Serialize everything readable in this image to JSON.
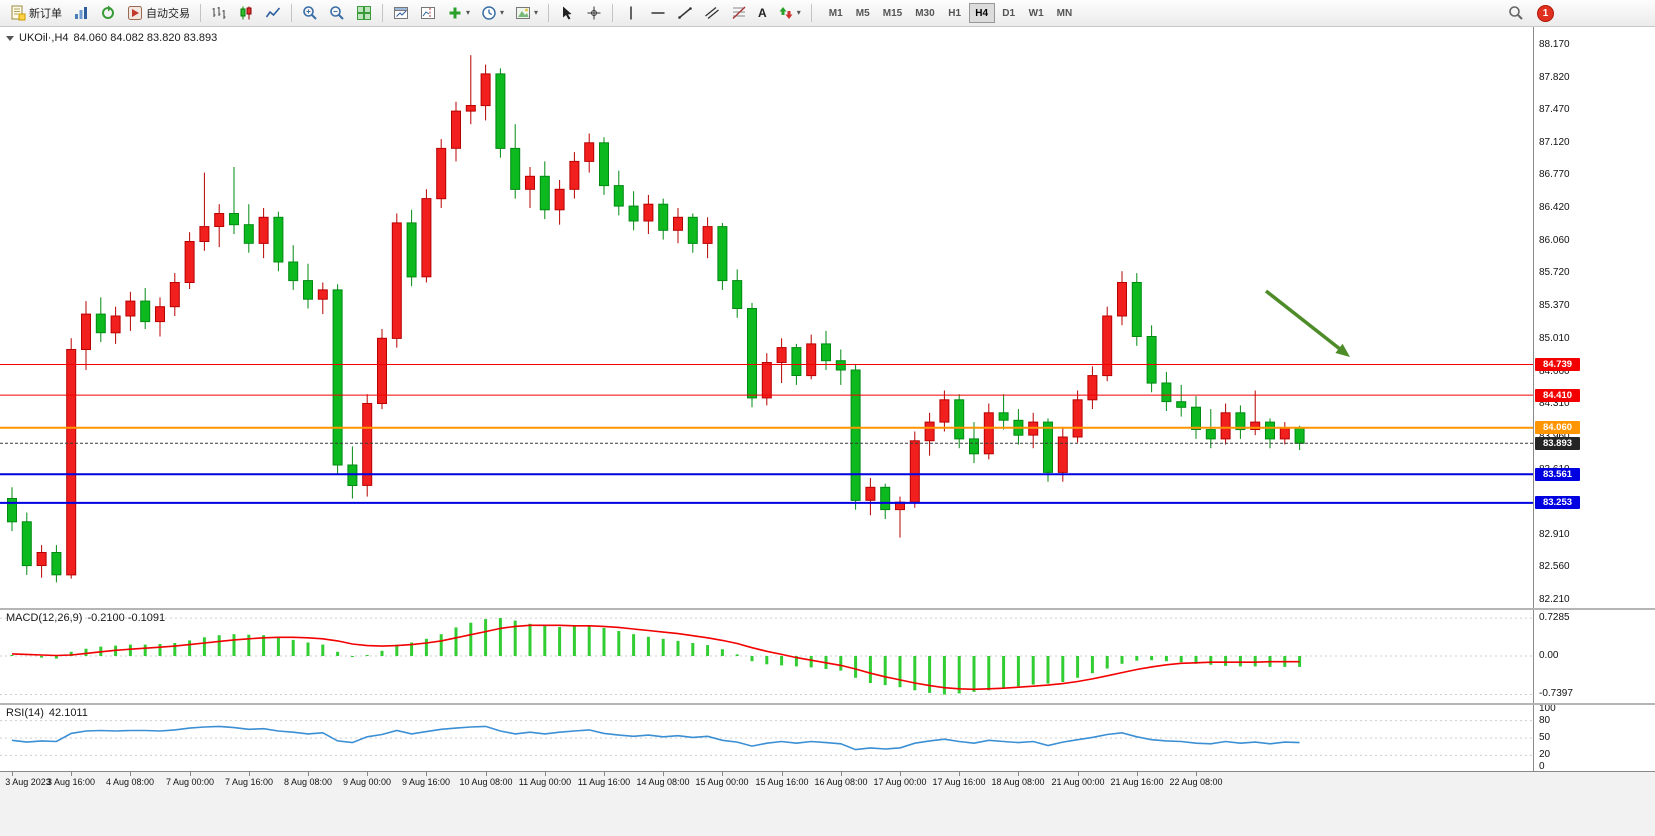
{
  "toolbar": {
    "new_order_label": "新订单",
    "autotrading_label": "自动交易",
    "badge_count": "1",
    "timeframes": [
      "M1",
      "M5",
      "M15",
      "M30",
      "H1",
      "H4",
      "D1",
      "W1",
      "MN"
    ],
    "active_timeframe": "H4",
    "glyphs": {
      "caret": "▾",
      "text_tool": "A",
      "fibo_tool": "f"
    }
  },
  "main_chart": {
    "symbol": "UKOil·,H4",
    "ohlc_text": "84.060 84.082 83.820 83.893",
    "price_axis": [
      "88.170",
      "87.820",
      "87.470",
      "87.120",
      "86.770",
      "86.420",
      "86.060",
      "85.720",
      "85.370",
      "85.010",
      "84.660",
      "84.310",
      "83.960",
      "83.610",
      "83.260",
      "82.910",
      "82.560",
      "82.210"
    ],
    "lines": [
      {
        "price": 84.739,
        "label": "84.739",
        "color": "#f20000",
        "width": 1,
        "dashed": false
      },
      {
        "price": 84.41,
        "label": "84.410",
        "color": "#f20000",
        "width": 1,
        "dashed": false
      },
      {
        "price": 84.06,
        "label": "84.060",
        "color": "#ff9500",
        "width": 2,
        "dashed": false
      },
      {
        "price": 83.893,
        "label": "83.893",
        "color": "#3a3a3a",
        "width": 1,
        "dashed": true,
        "tag_color": "#242424"
      },
      {
        "price": 83.561,
        "label": "83.561",
        "color": "#0000e0",
        "width": 2,
        "dashed": false
      },
      {
        "price": 83.253,
        "label": "83.253",
        "color": "#0000e0",
        "width": 2,
        "dashed": false
      }
    ],
    "annotation_arrow": {
      "from": [
        1266,
        264
      ],
      "to": [
        1350,
        330
      ],
      "color": "#4e8c2a"
    }
  },
  "macd": {
    "title": "MACD(12,26,9)",
    "values_text": "-0.2100 -0.1091",
    "axis": [
      "0.7285",
      "0.00",
      "-0.7397"
    ]
  },
  "rsi": {
    "title": "RSI(14)",
    "value": "42.1011",
    "axis": [
      "100",
      "80",
      "50",
      "20",
      "0"
    ]
  },
  "chart_data": {
    "type": "candlestick",
    "symbol": "UKOil",
    "timeframe": "H4",
    "price_range": [
      82.21,
      88.17
    ],
    "colors": {
      "bull": "#f21f1f",
      "bull_edge": "#b80000",
      "bear": "#0cb91f",
      "bear_edge": "#008a12",
      "macd_hist": "#32CD32",
      "macd_signal": "#f20000",
      "rsi_line": "#3b8fd4"
    },
    "candles": [
      [
        83.3,
        83.42,
        82.95,
        83.05
      ],
      [
        83.05,
        83.15,
        82.48,
        82.58
      ],
      [
        82.58,
        82.8,
        82.45,
        82.72
      ],
      [
        82.72,
        82.8,
        82.4,
        82.48
      ],
      [
        82.48,
        85.02,
        82.44,
        84.9
      ],
      [
        84.9,
        85.42,
        84.68,
        85.28
      ],
      [
        85.28,
        85.46,
        84.98,
        85.08
      ],
      [
        85.08,
        85.36,
        84.96,
        85.26
      ],
      [
        85.26,
        85.52,
        85.1,
        85.42
      ],
      [
        85.42,
        85.56,
        85.12,
        85.2
      ],
      [
        85.2,
        85.46,
        85.04,
        85.36
      ],
      [
        85.36,
        85.72,
        85.26,
        85.62
      ],
      [
        85.62,
        86.16,
        85.55,
        86.06
      ],
      [
        86.06,
        86.8,
        85.96,
        86.22
      ],
      [
        86.22,
        86.46,
        86.0,
        86.36
      ],
      [
        86.36,
        86.86,
        86.14,
        86.24
      ],
      [
        86.24,
        86.46,
        85.94,
        86.04
      ],
      [
        86.04,
        86.42,
        85.88,
        86.32
      ],
      [
        86.32,
        86.38,
        85.74,
        85.84
      ],
      [
        85.84,
        86.02,
        85.54,
        85.64
      ],
      [
        85.64,
        85.82,
        85.34,
        85.44
      ],
      [
        85.44,
        85.62,
        85.28,
        85.54
      ],
      [
        85.54,
        85.6,
        83.56,
        83.66
      ],
      [
        83.66,
        83.86,
        83.3,
        83.44
      ],
      [
        83.44,
        84.42,
        83.32,
        84.32
      ],
      [
        84.32,
        85.12,
        84.26,
        85.02
      ],
      [
        85.02,
        86.36,
        84.92,
        86.26
      ],
      [
        86.26,
        86.4,
        85.58,
        85.68
      ],
      [
        85.68,
        86.62,
        85.62,
        86.52
      ],
      [
        86.52,
        87.16,
        86.42,
        87.06
      ],
      [
        87.06,
        87.56,
        86.92,
        87.46
      ],
      [
        87.46,
        88.06,
        87.32,
        87.52
      ],
      [
        87.52,
        87.96,
        87.36,
        87.86
      ],
      [
        87.86,
        87.92,
        86.96,
        87.06
      ],
      [
        87.06,
        87.32,
        86.52,
        86.62
      ],
      [
        86.62,
        86.86,
        86.42,
        86.76
      ],
      [
        86.76,
        86.92,
        86.3,
        86.4
      ],
      [
        86.4,
        86.72,
        86.24,
        86.62
      ],
      [
        86.62,
        87.02,
        86.52,
        86.92
      ],
      [
        86.92,
        87.22,
        86.8,
        87.12
      ],
      [
        87.12,
        87.18,
        86.56,
        86.66
      ],
      [
        86.66,
        86.82,
        86.34,
        86.44
      ],
      [
        86.44,
        86.6,
        86.18,
        86.28
      ],
      [
        86.28,
        86.56,
        86.14,
        86.46
      ],
      [
        86.46,
        86.52,
        86.08,
        86.18
      ],
      [
        86.18,
        86.42,
        86.04,
        86.32
      ],
      [
        86.32,
        86.36,
        85.94,
        86.04
      ],
      [
        86.04,
        86.32,
        85.88,
        86.22
      ],
      [
        86.22,
        86.26,
        85.54,
        85.64
      ],
      [
        85.64,
        85.76,
        85.24,
        85.34
      ],
      [
        85.34,
        85.4,
        84.28,
        84.38
      ],
      [
        84.38,
        84.86,
        84.3,
        84.76
      ],
      [
        84.76,
        85.02,
        84.54,
        84.92
      ],
      [
        84.92,
        84.96,
        84.52,
        84.62
      ],
      [
        84.62,
        85.06,
        84.58,
        84.96
      ],
      [
        84.96,
        85.1,
        84.68,
        84.78
      ],
      [
        84.78,
        84.9,
        84.52,
        84.68
      ],
      [
        84.68,
        84.74,
        83.18,
        83.28
      ],
      [
        83.28,
        83.52,
        83.12,
        83.42
      ],
      [
        83.42,
        83.46,
        83.08,
        83.18
      ],
      [
        83.18,
        83.32,
        82.88,
        83.26
      ],
      [
        83.26,
        84.02,
        83.2,
        83.92
      ],
      [
        83.92,
        84.22,
        83.76,
        84.12
      ],
      [
        84.12,
        84.46,
        84.02,
        84.36
      ],
      [
        84.36,
        84.42,
        83.84,
        83.94
      ],
      [
        83.94,
        84.12,
        83.68,
        83.78
      ],
      [
        83.78,
        84.32,
        83.72,
        84.22
      ],
      [
        84.22,
        84.42,
        84.04,
        84.14
      ],
      [
        84.14,
        84.26,
        83.88,
        83.98
      ],
      [
        83.98,
        84.22,
        83.84,
        84.12
      ],
      [
        84.12,
        84.16,
        83.48,
        83.58
      ],
      [
        83.58,
        84.06,
        83.48,
        83.96
      ],
      [
        83.96,
        84.46,
        83.9,
        84.36
      ],
      [
        84.36,
        84.72,
        84.26,
        84.62
      ],
      [
        84.62,
        85.36,
        84.56,
        85.26
      ],
      [
        85.26,
        85.74,
        85.16,
        85.62
      ],
      [
        85.62,
        85.72,
        84.94,
        85.04
      ],
      [
        85.04,
        85.16,
        84.44,
        84.54
      ],
      [
        84.54,
        84.66,
        84.24,
        84.34
      ],
      [
        84.34,
        84.52,
        84.18,
        84.28
      ],
      [
        84.28,
        84.4,
        83.94,
        84.04
      ],
      [
        84.04,
        84.26,
        83.84,
        83.94
      ],
      [
        83.94,
        84.32,
        83.88,
        84.22
      ],
      [
        84.22,
        84.3,
        83.94,
        84.04
      ],
      [
        84.04,
        84.46,
        83.98,
        84.12
      ],
      [
        84.12,
        84.16,
        83.84,
        83.94
      ],
      [
        83.94,
        84.12,
        83.88,
        84.06
      ],
      [
        84.06,
        84.082,
        83.82,
        83.893
      ]
    ],
    "macd": {
      "range": [
        -0.7397,
        0.7285
      ],
      "histogram": [
        0.02,
        0.0,
        -0.03,
        -0.05,
        0.08,
        0.14,
        0.18,
        0.2,
        0.22,
        0.22,
        0.23,
        0.25,
        0.3,
        0.36,
        0.4,
        0.42,
        0.41,
        0.4,
        0.36,
        0.31,
        0.26,
        0.22,
        0.08,
        -0.02,
        0.02,
        0.1,
        0.22,
        0.26,
        0.33,
        0.42,
        0.55,
        0.64,
        0.71,
        0.73,
        0.68,
        0.62,
        0.58,
        0.56,
        0.57,
        0.58,
        0.54,
        0.48,
        0.42,
        0.37,
        0.33,
        0.29,
        0.25,
        0.21,
        0.13,
        0.03,
        -0.1,
        -0.16,
        -0.18,
        -0.2,
        -0.22,
        -0.25,
        -0.28,
        -0.42,
        -0.52,
        -0.56,
        -0.6,
        -0.66,
        -0.71,
        -0.74,
        -0.72,
        -0.69,
        -0.66,
        -0.62,
        -0.58,
        -0.55,
        -0.53,
        -0.5,
        -0.42,
        -0.33,
        -0.24,
        -0.15,
        -0.09,
        -0.08,
        -0.1,
        -0.12,
        -0.15,
        -0.17,
        -0.19,
        -0.2,
        -0.2,
        -0.21,
        -0.21,
        -0.21
      ],
      "signal": [
        0.04,
        0.03,
        0.02,
        0.01,
        0.02,
        0.05,
        0.08,
        0.11,
        0.13,
        0.15,
        0.17,
        0.19,
        0.22,
        0.25,
        0.28,
        0.31,
        0.33,
        0.35,
        0.36,
        0.36,
        0.35,
        0.33,
        0.29,
        0.23,
        0.2,
        0.19,
        0.2,
        0.22,
        0.25,
        0.29,
        0.35,
        0.41,
        0.47,
        0.53,
        0.57,
        0.59,
        0.59,
        0.59,
        0.58,
        0.58,
        0.57,
        0.55,
        0.52,
        0.49,
        0.46,
        0.43,
        0.39,
        0.35,
        0.3,
        0.24,
        0.16,
        0.09,
        0.03,
        -0.03,
        -0.08,
        -0.13,
        -0.18,
        -0.25,
        -0.33,
        -0.4,
        -0.46,
        -0.52,
        -0.57,
        -0.61,
        -0.63,
        -0.64,
        -0.63,
        -0.62,
        -0.6,
        -0.58,
        -0.56,
        -0.53,
        -0.49,
        -0.44,
        -0.38,
        -0.32,
        -0.26,
        -0.21,
        -0.17,
        -0.14,
        -0.13,
        -0.12,
        -0.12,
        -0.12,
        -0.12,
        -0.11,
        -0.11,
        -0.109
      ]
    },
    "rsi": {
      "range": [
        0,
        100
      ],
      "levels": [
        80,
        50,
        20
      ],
      "values": [
        46,
        43,
        45,
        44,
        58,
        62,
        63,
        62,
        63,
        63,
        62,
        64,
        67,
        69,
        70,
        68,
        65,
        66,
        62,
        60,
        57,
        59,
        45,
        42,
        52,
        56,
        63,
        57,
        61,
        65,
        67,
        69,
        70,
        62,
        57,
        60,
        57,
        60,
        62,
        64,
        58,
        55,
        53,
        55,
        52,
        54,
        51,
        53,
        46,
        43,
        36,
        41,
        44,
        41,
        44,
        42,
        40,
        30,
        33,
        31,
        33,
        41,
        45,
        48,
        44,
        41,
        46,
        44,
        42,
        44,
        37,
        43,
        47,
        51,
        56,
        59,
        52,
        47,
        45,
        44,
        41,
        40,
        44,
        41,
        43,
        40,
        43,
        42.1
      ]
    },
    "time_labels_every": 4,
    "time_labels": [
      "3 Aug 2023",
      "3 Aug 16:00",
      "4 Aug 08:00",
      "7 Aug 00:00",
      "7 Aug 16:00",
      "8 Aug 08:00",
      "9 Aug 00:00",
      "9 Aug 16:00",
      "10 Aug 08:00",
      "11 Aug 00:00",
      "11 Aug 16:00",
      "14 Aug 08:00",
      "15 Aug 00:00",
      "15 Aug 16:00",
      "16 Aug 08:00",
      "17 Aug 00:00",
      "17 Aug 16:00",
      "18 Aug 08:00",
      "21 Aug 00:00",
      "21 Aug 16:00",
      "22 Aug 08:00"
    ]
  }
}
